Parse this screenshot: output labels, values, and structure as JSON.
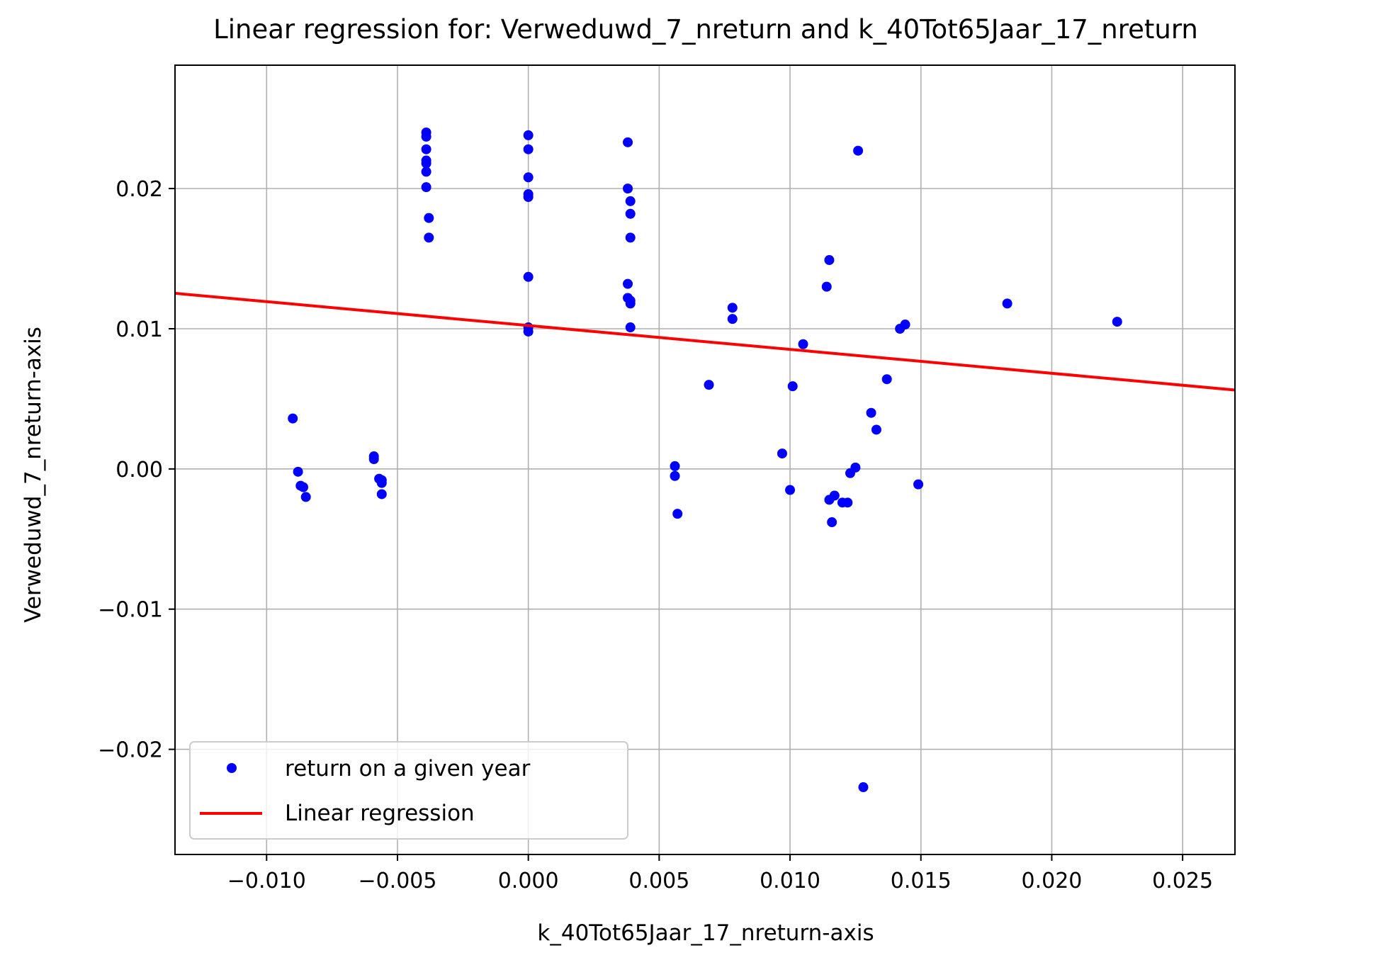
{
  "chart_data": {
    "type": "scatter",
    "title": "Linear regression for: Verweduwd_7_nreturn and k_40Tot65Jaar_17_nreturn",
    "xlabel": "k_40Tot65Jaar_17_nreturn-axis",
    "ylabel": "Verweduwd_7_nreturn-axis",
    "xlim": [
      -0.0135,
      0.027
    ],
    "ylim": [
      -0.0275,
      0.0288
    ],
    "x_ticks": [
      -0.01,
      -0.005,
      0.0,
      0.005,
      0.01,
      0.015,
      0.02,
      0.025
    ],
    "x_tick_labels": [
      "−0.010",
      "−0.005",
      "0.000",
      "0.005",
      "0.010",
      "0.015",
      "0.020",
      "0.025"
    ],
    "y_ticks": [
      -0.02,
      -0.01,
      0.0,
      0.01,
      0.02
    ],
    "y_tick_labels": [
      "−0.02",
      "−0.01",
      "0.00",
      "0.01",
      "0.02"
    ],
    "grid": true,
    "legend_position": "lower-left",
    "colors": {
      "points": "#0000ff",
      "line": "#ff0000",
      "grid": "#b0b0b0"
    },
    "series": [
      {
        "name": "return on a given year",
        "kind": "scatter",
        "points": [
          [
            -0.009,
            0.0036
          ],
          [
            -0.0088,
            -0.0002
          ],
          [
            -0.0087,
            -0.0012
          ],
          [
            -0.0086,
            -0.0013
          ],
          [
            -0.0085,
            -0.002
          ],
          [
            -0.0059,
            0.0009
          ],
          [
            -0.0059,
            0.0007
          ],
          [
            -0.0057,
            -0.0007
          ],
          [
            -0.0056,
            -0.0008
          ],
          [
            -0.0056,
            -0.001
          ],
          [
            -0.0056,
            -0.0018
          ],
          [
            -0.0039,
            0.024
          ],
          [
            -0.0039,
            0.0237
          ],
          [
            -0.0039,
            0.0228
          ],
          [
            -0.0039,
            0.022
          ],
          [
            -0.0039,
            0.0218
          ],
          [
            -0.0039,
            0.0212
          ],
          [
            -0.0039,
            0.0201
          ],
          [
            -0.0038,
            0.0179
          ],
          [
            -0.0038,
            0.0165
          ],
          [
            0.0,
            0.0238
          ],
          [
            0.0,
            0.0228
          ],
          [
            0.0,
            0.0208
          ],
          [
            0.0,
            0.0196
          ],
          [
            0.0,
            0.0194
          ],
          [
            0.0,
            0.0137
          ],
          [
            0.0,
            0.0101
          ],
          [
            0.0,
            0.0098
          ],
          [
            0.0038,
            0.0233
          ],
          [
            0.0038,
            0.02
          ],
          [
            0.0039,
            0.0191
          ],
          [
            0.0039,
            0.0182
          ],
          [
            0.0039,
            0.0165
          ],
          [
            0.0038,
            0.0132
          ],
          [
            0.0038,
            0.0122
          ],
          [
            0.0039,
            0.012
          ],
          [
            0.0039,
            0.0118
          ],
          [
            0.0039,
            0.0101
          ],
          [
            0.0056,
            0.0002
          ],
          [
            0.0056,
            -0.0005
          ],
          [
            0.0057,
            -0.0032
          ],
          [
            0.0069,
            0.006
          ],
          [
            0.0078,
            0.0115
          ],
          [
            0.0078,
            0.0107
          ],
          [
            0.0097,
            0.0011
          ],
          [
            0.01,
            -0.0015
          ],
          [
            0.0101,
            0.0059
          ],
          [
            0.0105,
            0.0089
          ],
          [
            0.0114,
            0.013
          ],
          [
            0.0115,
            0.0149
          ],
          [
            0.0115,
            -0.0022
          ],
          [
            0.0116,
            -0.0038
          ],
          [
            0.0117,
            -0.0019
          ],
          [
            0.012,
            -0.0024
          ],
          [
            0.0122,
            -0.0024
          ],
          [
            0.0123,
            -0.0003
          ],
          [
            0.0125,
            0.0001
          ],
          [
            0.0126,
            0.0227
          ],
          [
            0.0128,
            -0.0227
          ],
          [
            0.0131,
            0.004
          ],
          [
            0.0133,
            0.0028
          ],
          [
            0.0137,
            0.0064
          ],
          [
            0.0142,
            0.01
          ],
          [
            0.0144,
            0.0103
          ],
          [
            0.0149,
            -0.0011
          ],
          [
            0.0183,
            0.0118
          ],
          [
            0.0225,
            0.0105
          ]
        ]
      },
      {
        "name": "Linear regression",
        "kind": "line",
        "points": [
          [
            -0.0135,
            0.01253
          ],
          [
            0.027,
            0.00563
          ]
        ]
      }
    ]
  }
}
